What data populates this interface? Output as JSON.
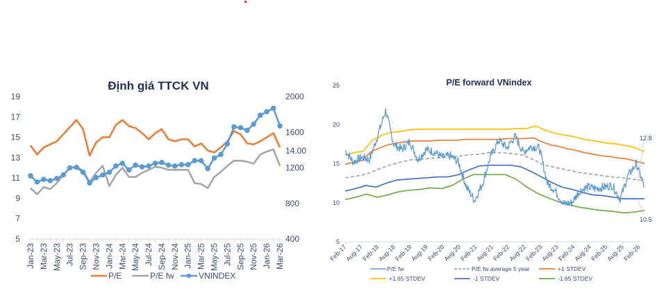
{
  "chart_data": [
    {
      "type": "line",
      "title": "Định giá TTCK VN",
      "x": [
        "Jan-23",
        "Feb-23",
        "Mar-23",
        "Apr-23",
        "May-23",
        "Jun-23",
        "Jul-23",
        "Aug-23",
        "Sep-23",
        "Oct-23",
        "Nov-23",
        "Dec-23",
        "Jan-24",
        "Feb-24",
        "Mar-24",
        "Apr-24",
        "May-24",
        "Jun-24",
        "Jul-24",
        "Aug-24",
        "Sep-24",
        "Oct-24",
        "Nov-24",
        "Dec-24",
        "Jan-25",
        "Feb-25",
        "Mar-25",
        "Apr-25",
        "May-25",
        "Jun-25",
        "Jul-25",
        "Aug-25",
        "Sep-25",
        "Oct-25",
        "Nov-25",
        "Dec-25",
        "Jan-26",
        "Feb-26",
        "Mar-26"
      ],
      "x_tick_labels": [
        "Jan-23",
        "Mar-23",
        "May-23",
        "Jul-23",
        "Sep-23",
        "Nov-23",
        "Jan-24",
        "Mar-24",
        "May-24",
        "Jul-24",
        "Sep-24",
        "Nov-24",
        "Jan-25",
        "Mar-25",
        "May-25",
        "Jul-25",
        "Sep-25",
        "Nov-25",
        "Jan-26",
        "Mar-26"
      ],
      "y_left": {
        "ticks": [
          "19",
          "17",
          "15",
          "13",
          "11",
          "9",
          "7",
          "5"
        ],
        "range": [
          5,
          19
        ]
      },
      "y_right": {
        "ticks": [
          "2000",
          "1600",
          "14.00",
          "1200",
          "800",
          "400"
        ],
        "tick_values": [
          2000,
          1600,
          1390,
          1200,
          800,
          400
        ],
        "range": [
          400,
          2000
        ]
      },
      "grid": false,
      "legend_position": "bottom",
      "series": [
        {
          "name": "P/E",
          "axis": "left",
          "color": "#ed7d31",
          "values": [
            14.2,
            13.3,
            14.0,
            14.3,
            14.6,
            15.3,
            16.0,
            16.7,
            15.8,
            13.2,
            14.5,
            15.0,
            15.0,
            16.2,
            16.7,
            16.1,
            15.9,
            15.4,
            14.8,
            15.4,
            15.8,
            14.8,
            14.6,
            14.8,
            14.8,
            14.1,
            14.4,
            13.7,
            13.5,
            14.0,
            14.6,
            15.6,
            15.3,
            14.4,
            14.3,
            14.6,
            15.0,
            15.4,
            14.0
          ]
        },
        {
          "name": "P/E fw",
          "axis": "left",
          "color": "#a5a5a5",
          "values": [
            10.0,
            9.4,
            10.1,
            9.9,
            10.5,
            11.3,
            12.0,
            12.1,
            11.7,
            10.6,
            11.5,
            12.2,
            10.2,
            11.3,
            12.0,
            11.1,
            11.1,
            11.5,
            11.8,
            12.1,
            12.0,
            11.8,
            11.8,
            11.8,
            11.8,
            10.5,
            10.4,
            10.0,
            11.1,
            11.6,
            12.2,
            12.7,
            12.7,
            12.6,
            12.4,
            13.3,
            13.6,
            13.8,
            12.2
          ]
        },
        {
          "name": "VNINDEX",
          "axis": "right",
          "color": "#5b9bd5",
          "markers": true,
          "values": [
            1110,
            1040,
            1070,
            1055,
            1080,
            1120,
            1200,
            1205,
            1150,
            1030,
            1090,
            1120,
            1150,
            1220,
            1250,
            1175,
            1230,
            1210,
            1220,
            1250,
            1260,
            1230,
            1220,
            1235,
            1235,
            1280,
            1280,
            1190,
            1310,
            1350,
            1470,
            1660,
            1650,
            1620,
            1690,
            1790,
            1830,
            1870,
            1670
          ]
        }
      ]
    },
    {
      "type": "line",
      "title": "P/E forward VNindex",
      "x_tick_labels": [
        "Feb-17",
        "Aug-17",
        "Feb-18",
        "Aug-18",
        "Feb-19",
        "Aug-19",
        "Feb-20",
        "Aug-20",
        "Feb-21",
        "Aug-21",
        "Feb-22",
        "Aug-22",
        "Feb-23",
        "Aug-23",
        "Feb-24",
        "Aug-24",
        "Feb-25",
        "Aug-25",
        "Feb-26"
      ],
      "y_ticks": [
        "25",
        "20",
        "15",
        "10",
        "5"
      ],
      "ylim": [
        5,
        25
      ],
      "grid": false,
      "legend_position": "bottom",
      "annotations": [
        {
          "text": "12.8",
          "series": "P/E fw average 5 year"
        },
        {
          "text": "10.5",
          "series": "-1 STDEV"
        }
      ],
      "x_months_from_feb17": [
        0,
        3,
        6,
        9,
        12,
        15,
        18,
        21,
        24,
        27,
        30,
        33,
        36,
        39,
        42,
        45,
        48,
        51,
        54,
        57,
        60,
        63,
        66,
        69,
        72,
        75,
        78,
        81,
        84,
        87,
        90,
        93,
        96,
        99,
        102,
        105,
        108,
        110
      ],
      "series": [
        {
          "name": "P/E fw",
          "color": "#5b9bd5",
          "style": "solid",
          "values": [
            16.7,
            15.2,
            15.8,
            15.5,
            18.5,
            21.8,
            17.5,
            16.8,
            17.8,
            15.5,
            16.8,
            16.5,
            15.8,
            16.0,
            15.2,
            12.0,
            10.3,
            12.5,
            16.0,
            18.0,
            17.0,
            18.5,
            16.5,
            17.2,
            17.0,
            12.5,
            11.5,
            9.8,
            10.0,
            11.5,
            12.0,
            11.8,
            12.0,
            12.2,
            10.5,
            13.5,
            15.0,
            12.0
          ]
        },
        {
          "name": "P/E fw average 5 year",
          "color": "#a5a5a5",
          "style": "dashed",
          "values": [
            13.2,
            13.4,
            13.7,
            14.3,
            14.8,
            15.2,
            15.5,
            15.6,
            15.7,
            15.8,
            15.9,
            16.1,
            16.2,
            16.4,
            16.4,
            16.3,
            16.1,
            15.5,
            14.8,
            14.5,
            14.2,
            13.9,
            13.7,
            13.5,
            13.3,
            13.2,
            13.0,
            12.8
          ]
        },
        {
          "name": "+1 STDEV",
          "color": "#ed7d31",
          "style": "solid",
          "values": [
            14.9,
            15.2,
            15.4,
            16.5,
            17.0,
            17.4,
            17.6,
            17.8,
            17.9,
            17.9,
            17.9,
            18.0,
            18.0,
            18.0,
            18.1,
            18.1,
            18.1,
            18.1,
            18.1,
            18.2,
            18.2,
            18.2,
            18.3,
            17.8,
            17.4,
            17.2,
            16.9,
            16.7,
            16.4,
            16.2,
            16.0,
            15.9,
            15.7,
            15.6,
            15.3,
            15.0
          ]
        },
        {
          "name": "+1.65 STDEV",
          "color": "#ffc000",
          "style": "solid",
          "values": [
            16.1,
            16.4,
            16.6,
            18.0,
            18.6,
            19.0,
            19.1,
            19.3,
            19.4,
            19.4,
            19.4,
            19.4,
            19.4,
            19.4,
            19.4,
            19.4,
            19.4,
            19.4,
            19.4,
            19.5,
            19.5,
            19.8,
            19.3,
            18.9,
            18.7,
            18.5,
            18.2,
            18.0,
            17.8,
            17.6,
            17.5,
            17.3,
            17.0,
            16.5
          ]
        },
        {
          "name": "-1 STDEV",
          "color": "#4472c4",
          "style": "solid",
          "values": [
            11.5,
            11.8,
            12.2,
            12.0,
            12.5,
            12.9,
            13.0,
            13.1,
            13.2,
            13.3,
            13.3,
            13.6,
            14.2,
            14.7,
            14.8,
            14.8,
            14.8,
            14.6,
            14.0,
            13.3,
            12.6,
            12.0,
            11.7,
            11.3,
            11.0,
            10.9,
            10.7,
            10.5,
            10.5,
            10.5
          ]
        },
        {
          "name": "-1.65 STDEV",
          "color": "#70ad47",
          "style": "solid",
          "values": [
            10.4,
            10.7,
            11.1,
            10.7,
            11.0,
            11.4,
            11.6,
            11.7,
            11.9,
            11.8,
            12.2,
            13.0,
            13.6,
            13.6,
            13.6,
            13.6,
            13.0,
            12.0,
            11.2,
            10.6,
            10.1,
            9.7,
            9.4,
            9.2,
            9.0,
            8.9,
            8.7,
            8.8,
            9.0
          ]
        }
      ]
    }
  ]
}
